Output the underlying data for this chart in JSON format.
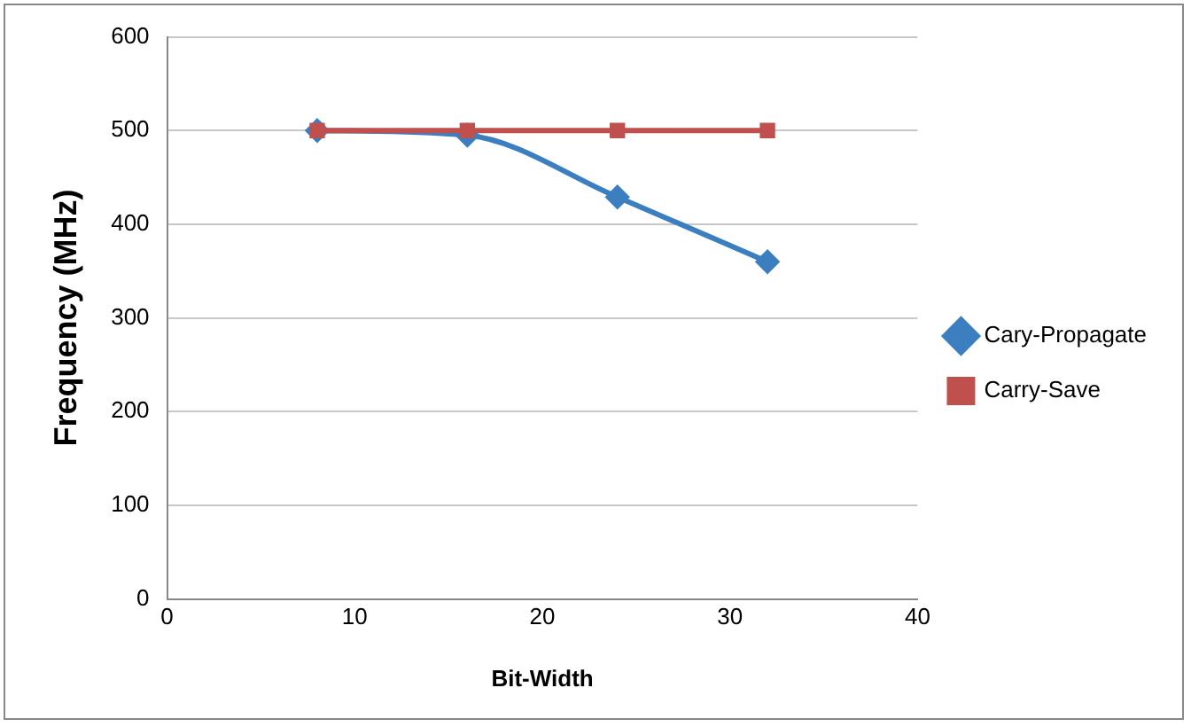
{
  "chart_data": {
    "type": "line",
    "xlabel": "Bit-Width",
    "ylabel": "Frequency (MHz)",
    "x": [
      8,
      16,
      24,
      32
    ],
    "series": [
      {
        "name": "Cary-Propagate",
        "color": "#3c7fc1",
        "values": [
          500,
          495,
          429,
          360
        ],
        "marker": "diamond"
      },
      {
        "name": "Carry-Save",
        "color": "#c0504d",
        "values": [
          500,
          500,
          500,
          500
        ],
        "marker": "square"
      }
    ],
    "xlim": [
      0,
      40
    ],
    "xticks": [
      0,
      10,
      20,
      30,
      40
    ],
    "ylim": [
      0,
      600
    ],
    "yticks": [
      0,
      100,
      200,
      300,
      400,
      500,
      600
    ],
    "grid": "y",
    "legend": "right"
  }
}
